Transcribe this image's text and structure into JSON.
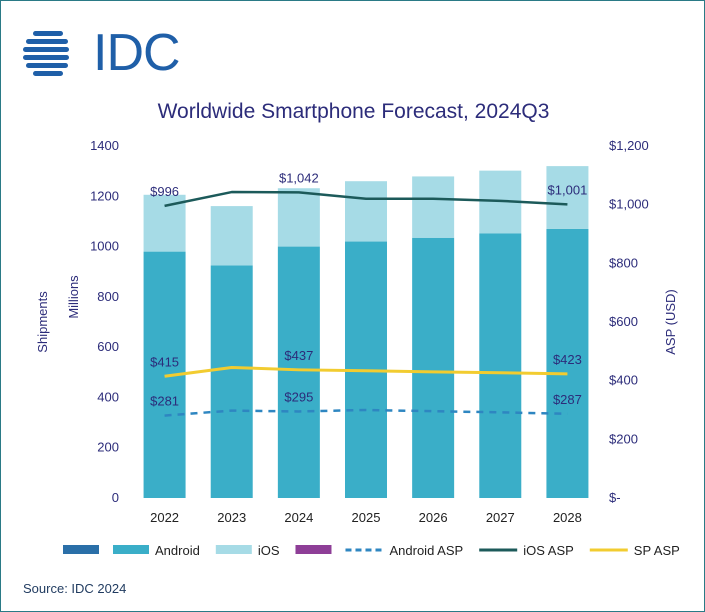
{
  "header": {
    "logo_text": "IDC",
    "title": "Worldwide Smartphone Forecast, 2024Q3"
  },
  "footer": {
    "source": "Source: IDC 2024"
  },
  "colors": {
    "android": "#3aaec8",
    "ios": "#a6dbe6",
    "android_asp": "#2e86c1",
    "ios_asp": "#1c5a5a",
    "sp_asp": "#f2cc30",
    "axis_text": "#2c2c7a",
    "legend_dark": "#2a6fa8",
    "legend_purple": "#8e3e97"
  },
  "chart_data": {
    "type": "bar",
    "stacked": true,
    "title": "Worldwide Smartphone Forecast, 2024Q3",
    "categories": [
      "2022",
      "2023",
      "2024",
      "2025",
      "2026",
      "2027",
      "2028"
    ],
    "y_left": {
      "label_lines": [
        "Shipments",
        "Millions"
      ],
      "ticks": [
        "0",
        "200",
        "400",
        "600",
        "800",
        "1000",
        "1200",
        "1400"
      ],
      "range": [
        0,
        1400
      ]
    },
    "y_right": {
      "label": "ASP (USD)",
      "ticks": [
        "$-",
        "$200",
        "$400",
        "$600",
        "$800",
        "$1,000",
        "$1,200"
      ],
      "range": [
        0,
        1200
      ]
    },
    "bar_series": [
      {
        "name": "Android",
        "values": [
          980,
          925,
          1000,
          1020,
          1035,
          1052,
          1070
        ]
      },
      {
        "name": "iOS",
        "values": [
          226,
          236,
          232,
          240,
          244,
          250,
          250
        ]
      }
    ],
    "line_series": [
      {
        "name": "Android ASP",
        "values": [
          281,
          298,
          295,
          300,
          296,
          292,
          287
        ]
      },
      {
        "name": "iOS ASP",
        "values": [
          996,
          1043,
          1042,
          1020,
          1020,
          1013,
          1001
        ]
      },
      {
        "name": "SP ASP",
        "values": [
          415,
          445,
          437,
          434,
          430,
          427,
          423
        ]
      }
    ],
    "data_labels": [
      {
        "series": "iOS ASP",
        "index": 0,
        "text": "$996"
      },
      {
        "series": "iOS ASP",
        "index": 2,
        "text": "$1,042"
      },
      {
        "series": "iOS ASP",
        "index": 6,
        "text": "$1,001"
      },
      {
        "series": "SP ASP",
        "index": 0,
        "text": "$415"
      },
      {
        "series": "SP ASP",
        "index": 2,
        "text": "$437"
      },
      {
        "series": "SP ASP",
        "index": 6,
        "text": "$423"
      },
      {
        "series": "Android ASP",
        "index": 0,
        "text": "$281"
      },
      {
        "series": "Android ASP",
        "index": 2,
        "text": "$295"
      },
      {
        "series": "Android ASP",
        "index": 6,
        "text": "$287"
      }
    ],
    "legend": {
      "position": "bottom",
      "items": [
        {
          "label": "",
          "kind": "box",
          "color_key": "legend_dark"
        },
        {
          "label": "Android",
          "kind": "box",
          "color_key": "android"
        },
        {
          "label": "iOS",
          "kind": "box",
          "color_key": "ios"
        },
        {
          "label": "",
          "kind": "box",
          "color_key": "legend_purple"
        },
        {
          "label": "Android ASP",
          "kind": "dash",
          "color_key": "android_asp"
        },
        {
          "label": "iOS ASP",
          "kind": "line",
          "color_key": "ios_asp"
        },
        {
          "label": "SP ASP",
          "kind": "line",
          "color_key": "sp_asp"
        }
      ]
    },
    "grid": false
  }
}
